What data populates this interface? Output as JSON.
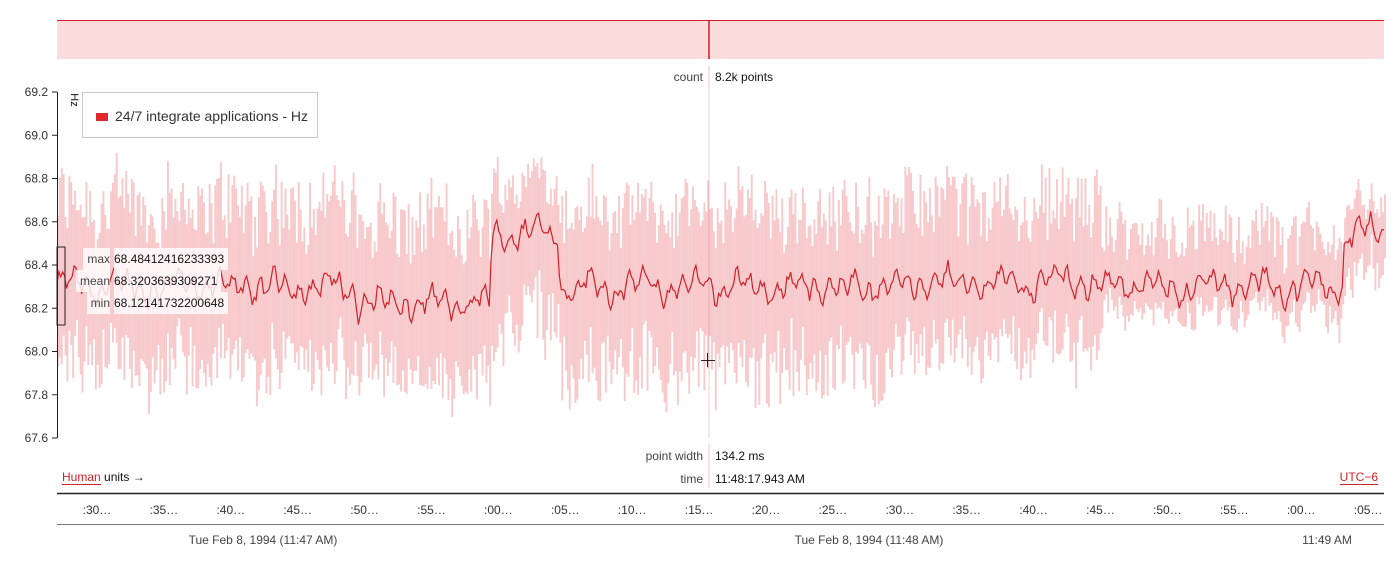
{
  "overview": {
    "count_label": "count",
    "count_value": "8.2k points"
  },
  "legend": {
    "label": "24/7 integrate applications - Hz",
    "color": "#e0282e"
  },
  "y_axis": {
    "unit": "Hz",
    "ticks": [
      "69.2",
      "69.0",
      "68.8",
      "68.6",
      "68.4",
      "68.2",
      "68.0",
      "67.8",
      "67.6"
    ]
  },
  "stats": {
    "max_label": "max",
    "max_value": "68.48412416233393",
    "mean_label": "mean",
    "mean_value": "68.3203639309271",
    "min_label": "min",
    "min_value": "68.12141732200648"
  },
  "cursor": {
    "point_width_label": "point width",
    "point_width_value": "134.2 ms",
    "time_label": "time",
    "time_value": "11:48:17.943 AM"
  },
  "units": {
    "link": "Human",
    "text": "units →"
  },
  "timezone": "UTC−6",
  "x_axis": {
    "tick_labels": [
      ":30…",
      ":35…",
      ":40…",
      ":45…",
      ":50…",
      ":55…",
      ":00…",
      ":05…",
      ":10…",
      ":15…",
      ":20…",
      ":25…",
      ":30…",
      ":35…",
      ":40…",
      ":45…",
      ":50…",
      ":55…",
      ":00…",
      ":05…"
    ],
    "date_labels": [
      "Tue Feb 8, 1994 (11:47 AM)",
      "Tue Feb 8, 1994 (11:48 AM)",
      "11:49 AM"
    ]
  },
  "colors": {
    "line": "#d0202a",
    "band": "#f7c9cb",
    "overview": "#fbdcdd",
    "axis": "#222222"
  },
  "chart_data": {
    "type": "line",
    "series": [
      {
        "name": "24/7 integrate applications - Hz",
        "unit": "Hz"
      }
    ],
    "ylabel": "Hz",
    "ylim": [
      67.6,
      69.2
    ],
    "x_start": "11:47:28 AM",
    "x_end": "11:49:06 AM",
    "bucket_width": "134.2 ms",
    "point_count": "8.2k points",
    "envelope": "min/max band around mean line",
    "segments": [
      {
        "from": "11:47:28",
        "to": "11:47:50",
        "mean": 68.3,
        "min_low": 67.75,
        "max_high": 68.9
      },
      {
        "from": "11:47:50",
        "to": "11:48:00",
        "mean": 68.22,
        "min_low": 67.7,
        "max_high": 68.8
      },
      {
        "from": "11:48:00",
        "to": "11:48:05",
        "mean": 68.55,
        "min_low": 67.85,
        "max_high": 68.93
      },
      {
        "from": "11:48:05",
        "to": "11:48:30",
        "mean": 68.3,
        "min_low": 67.7,
        "max_high": 68.85
      },
      {
        "from": "11:48:30",
        "to": "11:48:45",
        "mean": 68.32,
        "min_low": 67.85,
        "max_high": 68.9
      },
      {
        "from": "11:48:45",
        "to": "11:49:03",
        "mean": 68.3,
        "min_low": 68.1,
        "max_high": 68.7
      },
      {
        "from": "11:49:03",
        "to": "11:49:06",
        "mean": 68.55,
        "min_low": 68.25,
        "max_high": 68.75
      }
    ],
    "cursor_time": "11:48:17.943 AM",
    "cursor_stats": {
      "max": 68.48412416233393,
      "mean": 68.3203639309271,
      "min": 68.12141732200648
    },
    "legend_position": "top-left"
  }
}
